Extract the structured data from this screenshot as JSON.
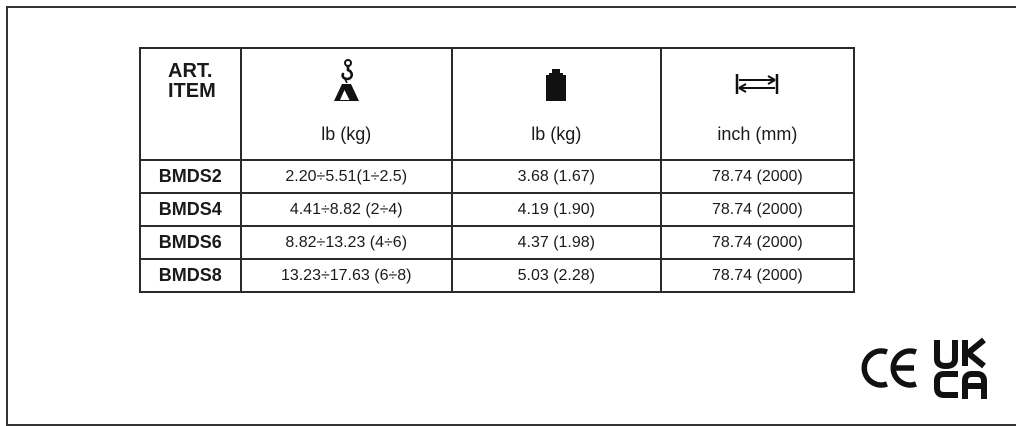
{
  "table": {
    "header": {
      "art_line1": "ART.",
      "art_line2": "ITEM",
      "capacity_unit": "lb (kg)",
      "weight_unit": "lb (kg)",
      "length_unit": "inch (mm)"
    },
    "icons": {
      "capacity": "hook-load-icon",
      "weight": "weight-icon",
      "length": "length-arrow-icon"
    },
    "rows": [
      {
        "art": "BMDS2",
        "capacity": "2.20÷5.51(1÷2.5)",
        "weight": "3.68 (1.67)",
        "length": "78.74 (2000)"
      },
      {
        "art": "BMDS4",
        "capacity": "4.41÷8.82 (2÷4)",
        "weight": "4.19 (1.90)",
        "length": "78.74 (2000)"
      },
      {
        "art": "BMDS6",
        "capacity": "8.82÷13.23 (4÷6)",
        "weight": "4.37 (1.98)",
        "length": "78.74 (2000)"
      },
      {
        "art": "BMDS8",
        "capacity": "13.23÷17.63 (6÷8)",
        "weight": "5.03 (2.28)",
        "length": "78.74 (2000)"
      }
    ]
  },
  "certifications": {
    "ce": "CE",
    "ukca_line1": "UK",
    "ukca_line2": "CA"
  }
}
